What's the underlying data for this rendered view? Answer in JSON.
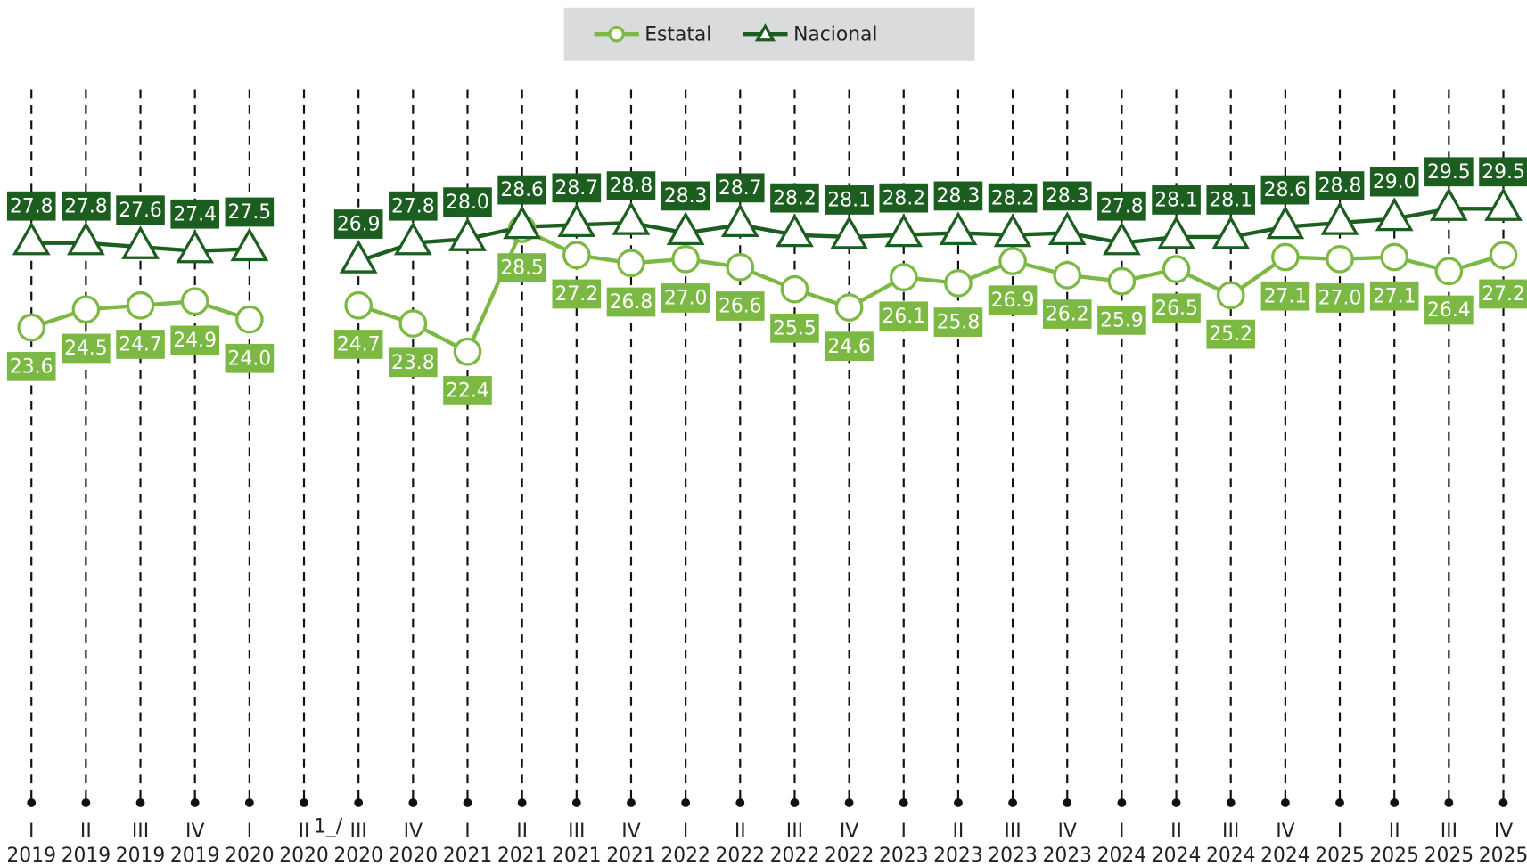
{
  "chart_data": {
    "type": "line",
    "categories": [
      {
        "quarter": "I",
        "year": "2019"
      },
      {
        "quarter": "II",
        "year": "2019"
      },
      {
        "quarter": "III",
        "year": "2019"
      },
      {
        "quarter": "IV",
        "year": "2019"
      },
      {
        "quarter": "I",
        "year": "2020"
      },
      {
        "quarter": "II",
        "year": "2020",
        "note": "1_/"
      },
      {
        "quarter": "III",
        "year": "2020"
      },
      {
        "quarter": "IV",
        "year": "2020"
      },
      {
        "quarter": "I",
        "year": "2021"
      },
      {
        "quarter": "II",
        "year": "2021"
      },
      {
        "quarter": "III",
        "year": "2021"
      },
      {
        "quarter": "IV",
        "year": "2021"
      },
      {
        "quarter": "I",
        "year": "2022"
      },
      {
        "quarter": "II",
        "year": "2022"
      },
      {
        "quarter": "III",
        "year": "2022"
      },
      {
        "quarter": "IV",
        "year": "2022"
      },
      {
        "quarter": "I",
        "year": "2023"
      },
      {
        "quarter": "II",
        "year": "2023"
      },
      {
        "quarter": "III",
        "year": "2023"
      },
      {
        "quarter": "IV",
        "year": "2023"
      },
      {
        "quarter": "I",
        "year": "2024"
      },
      {
        "quarter": "II",
        "year": "2024"
      },
      {
        "quarter": "III",
        "year": "2024"
      },
      {
        "quarter": "IV",
        "year": "2024"
      },
      {
        "quarter": "I",
        "year": "2025"
      },
      {
        "quarter": "II",
        "year": "2025"
      },
      {
        "quarter": "III",
        "year": "2025"
      },
      {
        "quarter": "IV",
        "year": "2025"
      }
    ],
    "series": [
      {
        "name": "Estatal",
        "color": "#7cb944",
        "marker": "circle",
        "values": [
          23.6,
          24.5,
          24.7,
          24.9,
          24.0,
          null,
          24.7,
          23.8,
          22.4,
          28.5,
          27.2,
          26.8,
          27.0,
          26.6,
          25.5,
          24.6,
          26.1,
          25.8,
          26.9,
          26.2,
          25.9,
          26.5,
          25.2,
          27.1,
          27.0,
          27.1,
          26.4,
          27.2
        ],
        "value_labels": [
          "23.6",
          "24.5",
          "24.7",
          "24.9",
          "24.0",
          null,
          "24.7",
          "23.8",
          "22.4",
          "28.5",
          "27.2",
          "26.8",
          "27.0",
          "26.6",
          "25.5",
          "24.6",
          "26.1",
          "25.8",
          "26.9",
          "26.2",
          "25.9",
          "26.5",
          "25.2",
          "27.1",
          "27.0",
          "27.1",
          "26.4",
          "27.2"
        ]
      },
      {
        "name": "Nacional",
        "color": "#1b5e20",
        "marker": "triangle",
        "values": [
          27.8,
          27.8,
          27.6,
          27.4,
          27.5,
          null,
          26.9,
          27.8,
          28.0,
          28.6,
          28.7,
          28.8,
          28.3,
          28.7,
          28.2,
          28.1,
          28.2,
          28.3,
          28.2,
          28.3,
          27.8,
          28.1,
          28.1,
          28.6,
          28.8,
          29.0,
          29.5,
          29.5
        ],
        "value_labels": [
          "27.8",
          "27.8",
          "27.6",
          "27.4",
          "27.5",
          null,
          "26.9",
          "27.8",
          "28.0",
          "28.6",
          "28.7",
          "28.8",
          "28.3",
          "28.7",
          "28.2",
          "28.1",
          "28.2",
          "28.3",
          "28.2",
          "28.3",
          "27.8",
          "28.1",
          "28.1",
          "28.6",
          "28.8",
          "29.0",
          "29.5",
          "29.5"
        ]
      }
    ],
    "ylim": [
      0,
      36
    ],
    "legend": "top"
  }
}
